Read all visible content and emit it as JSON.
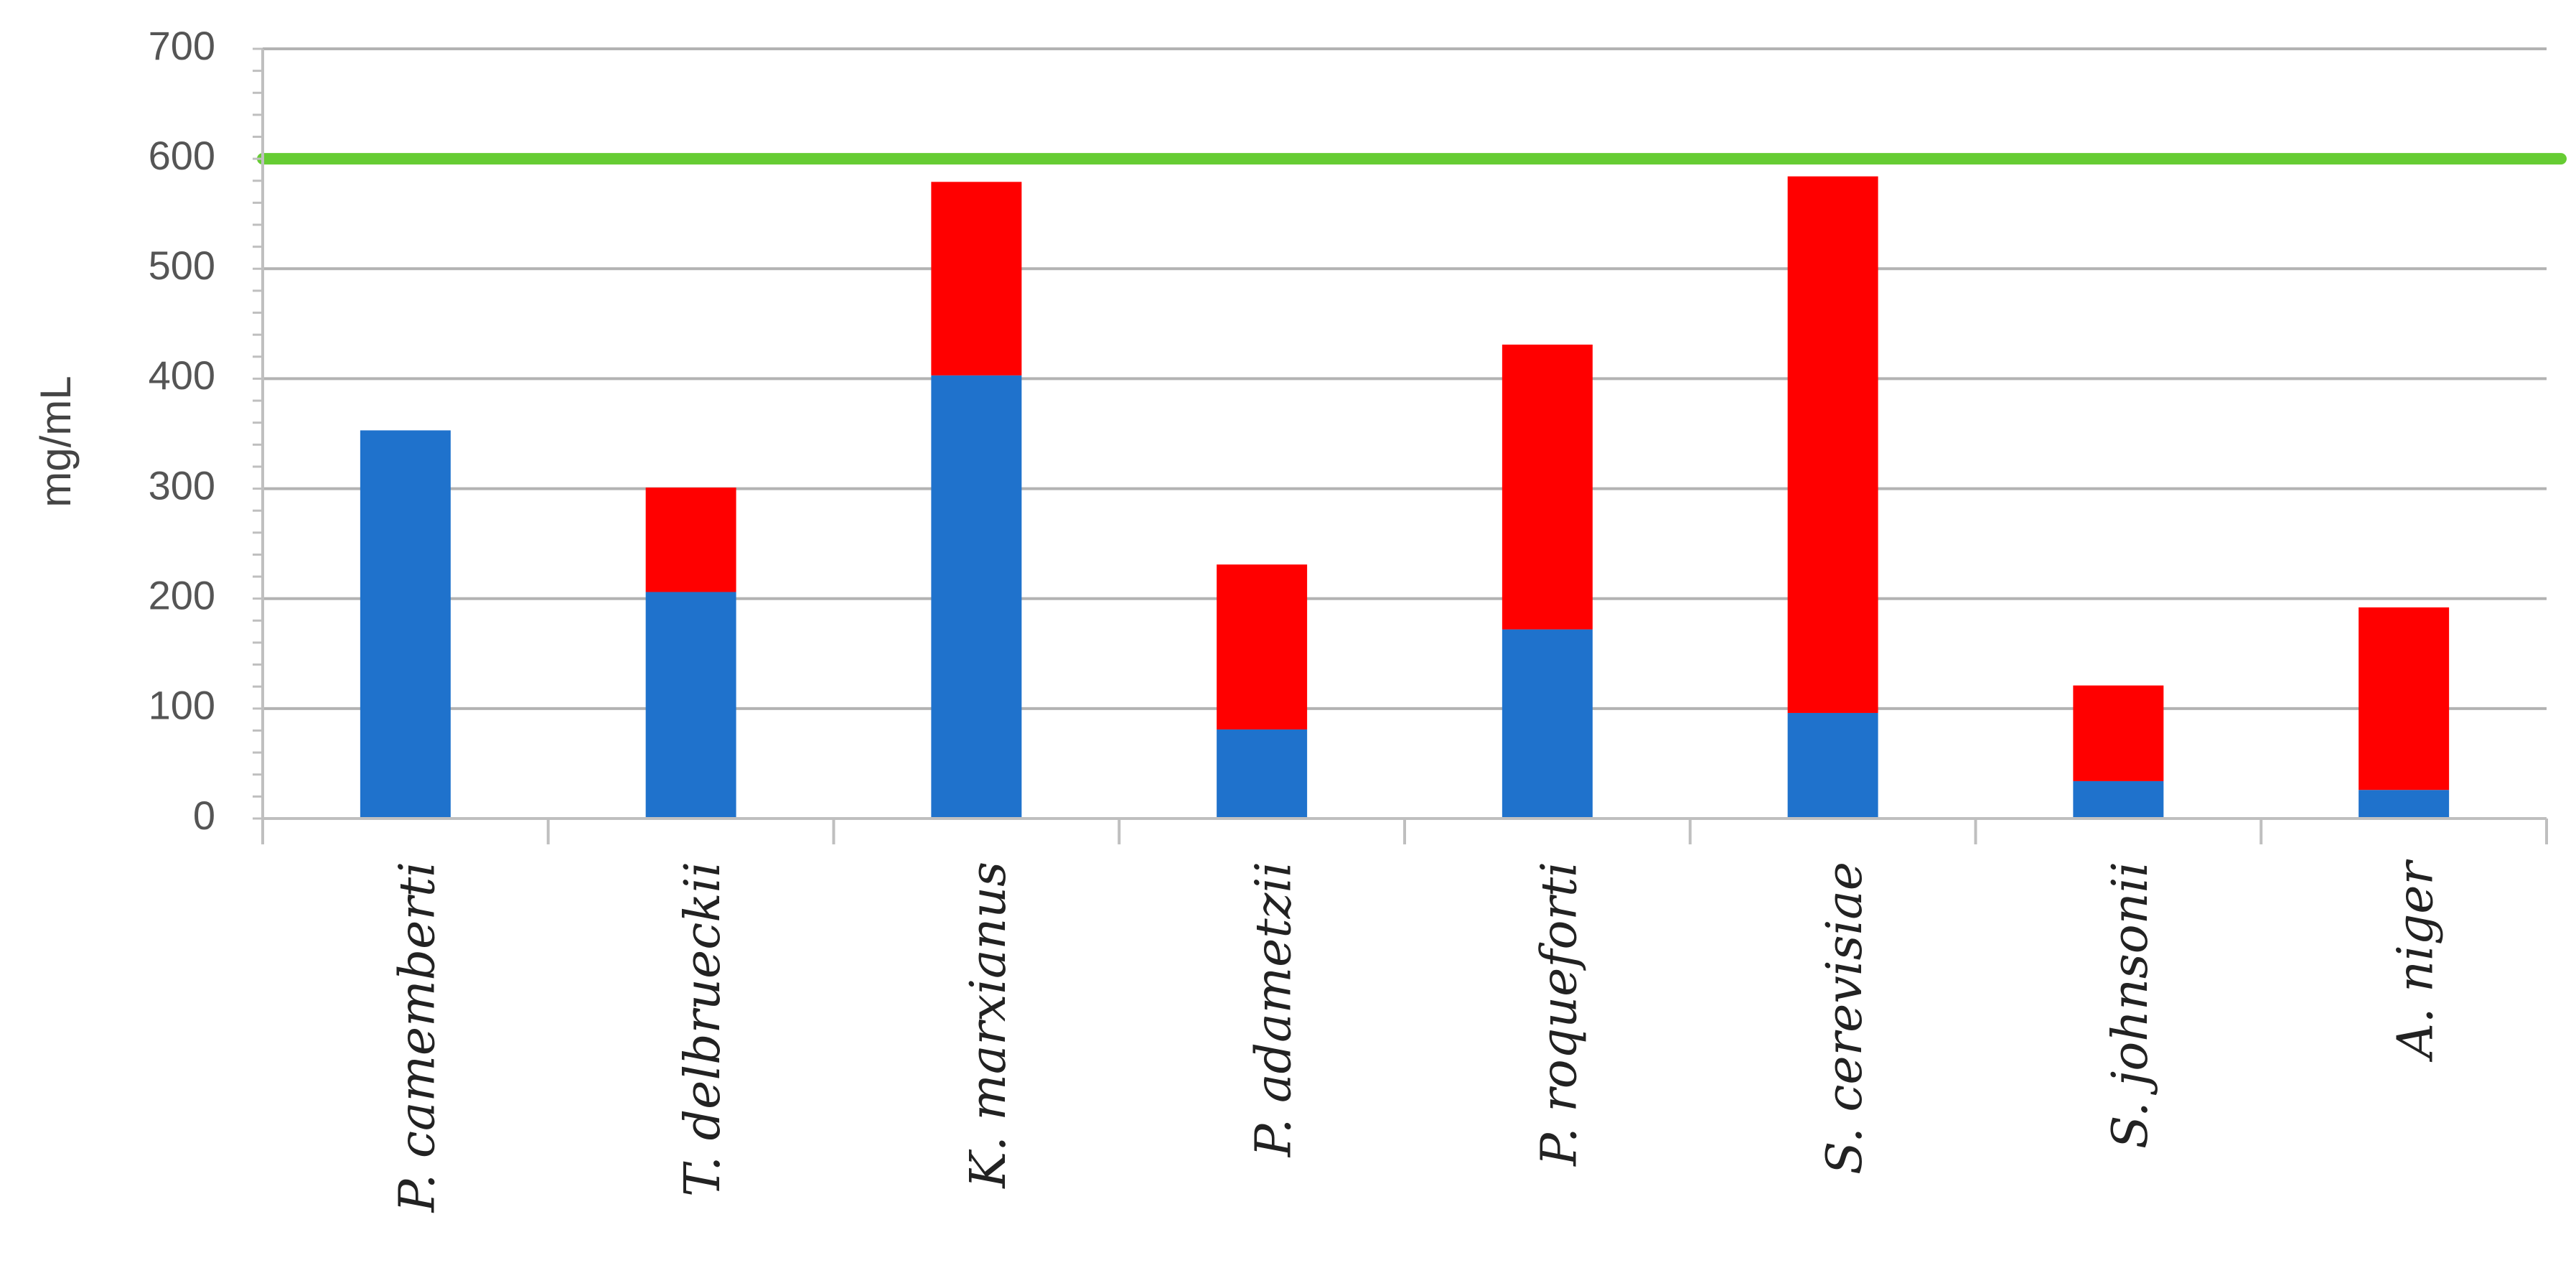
{
  "chart_data": {
    "type": "bar",
    "stacked": true,
    "categories": [
      "P. camemberti",
      "T. delbrueckii",
      "K. marxianus",
      "P. adametzii",
      "P. roqueforti",
      "S. cerevisiae",
      "S. johnsonii",
      "A. niger"
    ],
    "series": [
      {
        "color": "#1f72cc",
        "values": [
          353,
          206,
          403,
          81,
          172,
          96,
          34,
          26
        ]
      },
      {
        "color": "#ff0000",
        "values": [
          0,
          95,
          176,
          150,
          259,
          488,
          87,
          166
        ]
      }
    ],
    "reference_line": {
      "value": 600,
      "color": "#66cc33"
    },
    "title": "",
    "xlabel": "",
    "ylabel": "mg/mL",
    "ylim": [
      0,
      700
    ],
    "yticks": [
      0,
      100,
      200,
      300,
      400,
      500,
      600,
      700
    ],
    "grid": true,
    "legend": "none"
  }
}
